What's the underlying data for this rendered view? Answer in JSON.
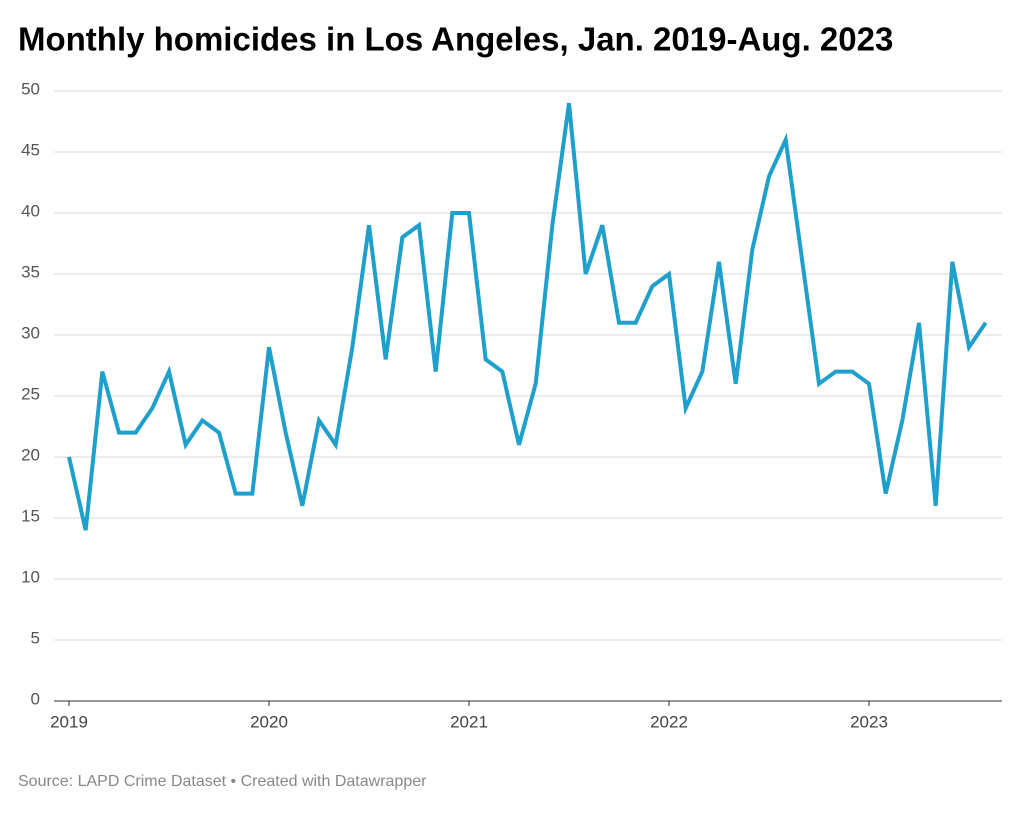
{
  "chart_data": {
    "type": "line",
    "title": "Monthly homicides in Los Angeles, Jan. 2019-Aug. 2023",
    "source": "Source: LAPD Crime Dataset • Created with Datawrapper",
    "categories": [
      "2019",
      null,
      null,
      null,
      null,
      null,
      null,
      null,
      null,
      null,
      null,
      null,
      "2020",
      null,
      null,
      null,
      null,
      null,
      null,
      null,
      null,
      null,
      null,
      null,
      "2021",
      null,
      null,
      null,
      null,
      null,
      null,
      null,
      null,
      null,
      null,
      null,
      "2022",
      null,
      null,
      null,
      null,
      null,
      null,
      null,
      null,
      null,
      null,
      null,
      "2023",
      null,
      null,
      null,
      null,
      null,
      null,
      null
    ],
    "values": [
      20,
      14,
      27,
      22,
      22,
      24,
      27,
      21,
      23,
      22,
      17,
      17,
      29,
      22,
      16,
      23,
      21,
      29,
      39,
      28,
      38,
      39,
      27,
      40,
      40,
      28,
      27,
      21,
      26,
      39,
      49,
      35,
      39,
      31,
      31,
      34,
      35,
      24,
      27,
      36,
      26,
      37,
      43,
      46,
      36,
      26,
      27,
      27,
      26,
      17,
      23,
      31,
      16,
      36,
      29,
      31
    ],
    "color": "#1f9fcc",
    "ylim": [
      0,
      50
    ],
    "yticks": [
      0,
      5,
      10,
      15,
      20,
      25,
      30,
      35,
      40,
      45,
      50
    ],
    "grid": true
  }
}
